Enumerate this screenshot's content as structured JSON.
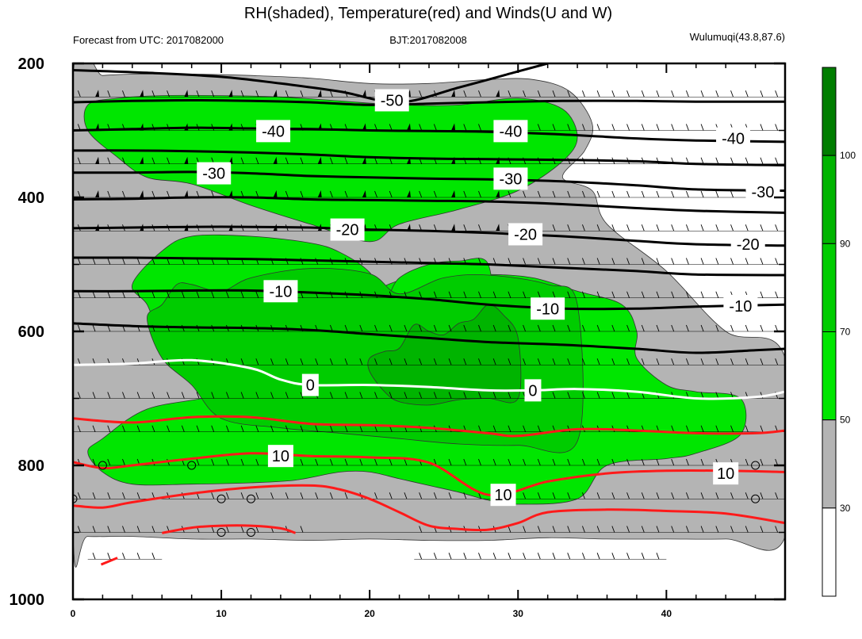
{
  "title": "RH(shaded), Temperature(red) and Winds(U and W)",
  "header_left": "Forecast from UTC: 2017082000",
  "header_center": "BJT:2017082008",
  "header_right": "Wulumuqi(43.8,87.6)",
  "colors": {
    "rh_30_50": "#b4b4b4",
    "rh_50_70": "#00e600",
    "rh_70_90": "#00cc00",
    "rh_90_100": "#00b400",
    "rh_100": "#007d00",
    "warm_isotherm": "#ff1a1a",
    "zero_isotherm": "#ffffff",
    "cold_isotherm": "#000000"
  },
  "chart_data": {
    "type": "heatmap",
    "title": "RH(shaded), Temperature(red) and Winds(U and W)",
    "x_ticks": [
      0,
      10,
      20,
      30,
      40
    ],
    "xlim": [
      0,
      48
    ],
    "y_ticks": [
      200,
      400,
      600,
      800,
      1000
    ],
    "ylim": [
      200,
      1000
    ],
    "y_reversed": true,
    "colorbar": {
      "levels": [
        30,
        50,
        70,
        90,
        100
      ],
      "colors": [
        "#ffffff",
        "#b4b4b4",
        "#00e600",
        "#00cc00",
        "#00b400",
        "#007d00"
      ]
    },
    "isotherm_labels": [
      {
        "value": "-50",
        "x": 21.5,
        "y": 255
      },
      {
        "value": "-40",
        "x": 13.5,
        "y": 301
      },
      {
        "value": "-40",
        "x": 29.5,
        "y": 301
      },
      {
        "value": "-40",
        "x": 44.5,
        "y": 312
      },
      {
        "value": "-30",
        "x": 9.5,
        "y": 364
      },
      {
        "value": "-30",
        "x": 29.5,
        "y": 372
      },
      {
        "value": "-30",
        "x": 46.5,
        "y": 392
      },
      {
        "value": "-20",
        "x": 18.5,
        "y": 448
      },
      {
        "value": "-20",
        "x": 30.5,
        "y": 455
      },
      {
        "value": "-20",
        "x": 45.5,
        "y": 470
      },
      {
        "value": "-10",
        "x": 14,
        "y": 540
      },
      {
        "value": "-10",
        "x": 32,
        "y": 566
      },
      {
        "value": "-10",
        "x": 45,
        "y": 562
      },
      {
        "value": "0",
        "x": 16,
        "y": 680
      },
      {
        "value": "0",
        "x": 31,
        "y": 688
      },
      {
        "value": "10",
        "x": 14,
        "y": 786
      },
      {
        "value": "10",
        "x": 29,
        "y": 844
      },
      {
        "value": "10",
        "x": 44,
        "y": 812
      }
    ],
    "isotherms": [
      {
        "t": -50,
        "x": [
          0,
          5,
          10,
          14,
          18,
          22,
          26,
          30,
          32
        ],
        "y": [
          210,
          214,
          220,
          230,
          242,
          258,
          236,
          212,
          200
        ]
      },
      {
        "t": -45,
        "x": [
          0,
          4,
          8,
          12,
          16,
          20,
          24,
          28,
          33,
          38,
          42,
          48
        ],
        "y": [
          258,
          256,
          255,
          256,
          258,
          262,
          260,
          258,
          256,
          256,
          257,
          257
        ]
      },
      {
        "t": -40,
        "x": [
          0,
          4,
          8,
          12,
          16,
          20,
          24,
          28,
          33,
          38,
          42,
          48
        ],
        "y": [
          300,
          298,
          296,
          297,
          298,
          300,
          301,
          302,
          306,
          312,
          315,
          317
        ]
      },
      {
        "t": -35,
        "x": [
          0,
          4,
          8,
          12,
          16,
          20,
          24,
          28,
          33,
          38,
          42,
          48
        ],
        "y": [
          330,
          330,
          331,
          333,
          336,
          340,
          342,
          343,
          344,
          346,
          350,
          352
        ]
      },
      {
        "t": -30,
        "x": [
          0,
          4,
          8,
          12,
          16,
          20,
          24,
          28,
          33,
          38,
          42,
          48
        ],
        "y": [
          363,
          363,
          362,
          364,
          368,
          370,
          372,
          373,
          376,
          382,
          388,
          390
        ]
      },
      {
        "t": -25,
        "x": [
          0,
          4,
          8,
          12,
          16,
          20,
          24,
          28,
          33,
          38,
          42,
          48
        ],
        "y": [
          403,
          402,
          400,
          400,
          403,
          404,
          405,
          406,
          410,
          416,
          420,
          423
        ]
      },
      {
        "t": -20,
        "x": [
          0,
          4,
          8,
          12,
          16,
          20,
          24,
          28,
          33,
          38,
          42,
          48
        ],
        "y": [
          446,
          445,
          444,
          444,
          445,
          448,
          450,
          453,
          458,
          465,
          470,
          472
        ]
      },
      {
        "t": -15,
        "x": [
          0,
          4,
          8,
          12,
          16,
          20,
          24,
          28,
          33,
          38,
          42,
          48
        ],
        "y": [
          490,
          490,
          491,
          492,
          494,
          496,
          498,
          500,
          505,
          510,
          515,
          516
        ]
      },
      {
        "t": -10,
        "x": [
          0,
          4,
          8,
          12,
          16,
          20,
          24,
          28,
          33,
          38,
          42,
          48
        ],
        "y": [
          540,
          540,
          539,
          539,
          542,
          546,
          552,
          560,
          566,
          566,
          563,
          560
        ]
      },
      {
        "t": -5,
        "x": [
          0,
          4,
          8,
          12,
          16,
          20,
          24,
          28,
          33,
          38,
          42,
          46,
          48
        ],
        "y": [
          588,
          592,
          594,
          595,
          598,
          604,
          610,
          616,
          620,
          626,
          632,
          628,
          626
        ]
      },
      {
        "t": 0,
        "x": [
          0,
          4,
          8,
          12,
          14,
          16,
          20,
          24,
          28,
          31,
          34,
          38,
          42,
          46,
          48
        ],
        "y": [
          650,
          648,
          643,
          655,
          672,
          680,
          680,
          683,
          688,
          688,
          686,
          690,
          700,
          698,
          690
        ]
      },
      {
        "t": 5,
        "x": [
          0,
          4,
          8,
          12,
          16,
          20,
          24,
          28,
          30,
          34,
          38,
          42,
          46,
          48
        ],
        "y": [
          730,
          736,
          728,
          728,
          738,
          740,
          744,
          752,
          756,
          746,
          748,
          752,
          752,
          748
        ]
      },
      {
        "t": 10,
        "x": [
          0,
          2,
          4,
          8,
          12,
          16,
          20,
          24,
          28,
          32,
          36,
          40,
          44,
          48
        ],
        "y": [
          795,
          804,
          800,
          790,
          782,
          786,
          788,
          796,
          844,
          824,
          812,
          808,
          808,
          810
        ]
      },
      {
        "t": 15,
        "x": [
          0,
          2,
          4,
          8,
          12,
          16,
          18,
          20,
          22,
          24,
          26,
          28,
          30,
          32,
          36,
          40,
          44,
          48
        ],
        "y": [
          860,
          863,
          855,
          842,
          833,
          830,
          836,
          850,
          870,
          890,
          895,
          896,
          886,
          870,
          866,
          868,
          872,
          886
        ]
      },
      {
        "t": 20,
        "x": [
          6,
          8,
          10,
          12,
          14,
          15
        ],
        "y": [
          901,
          893,
          890,
          890,
          894,
          901
        ]
      },
      {
        "t": 20,
        "x": [
          1.9,
          3
        ],
        "y": [
          948,
          938
        ]
      }
    ],
    "rh_regions": [
      {
        "level": 30,
        "x": [
          0,
          2,
          4,
          8,
          12,
          16,
          20,
          24,
          28,
          31,
          33.5,
          35,
          34.5,
          33,
          35,
          36,
          40,
          44,
          48,
          48,
          44,
          40,
          36,
          32,
          28,
          24,
          20,
          16,
          12,
          8,
          4,
          1,
          0
        ],
        "y": [
          222,
          218,
          216,
          216,
          218,
          222,
          230,
          230,
          224,
          224,
          242,
          290,
          330,
          370,
          390,
          440,
          510,
          600,
          640,
          906,
          910,
          910,
          910,
          908,
          912,
          912,
          910,
          912,
          910,
          910,
          906,
          906,
          900
        ]
      },
      {
        "level": 50,
        "x": [
          1,
          3,
          6,
          10,
          14,
          18,
          22,
          26,
          30,
          33,
          34,
          33,
          30,
          26,
          22,
          20,
          16,
          12,
          8,
          5,
          3,
          1
        ],
        "y": [
          262,
          252,
          248,
          248,
          250,
          256,
          262,
          262,
          252,
          268,
          310,
          346,
          390,
          418,
          440,
          466,
          440,
          412,
          380,
          370,
          340,
          300
        ]
      },
      {
        "level": 50,
        "x": [
          2,
          5,
          10,
          13,
          17,
          19,
          22,
          25,
          28,
          31,
          34,
          37,
          38,
          38,
          40,
          42,
          45,
          45,
          42,
          40,
          36,
          34,
          30,
          28,
          26,
          24,
          22,
          20,
          18,
          15,
          12,
          8,
          4,
          2,
          1
        ],
        "y": [
          760,
          716,
          692,
          640,
          590,
          556,
          524,
          518,
          515,
          520,
          540,
          560,
          600,
          640,
          680,
          690,
          700,
          754,
          782,
          790,
          800,
          850,
          858,
          852,
          840,
          830,
          820,
          810,
          810,
          822,
          826,
          828,
          828,
          810,
          780
        ]
      },
      {
        "level": 50,
        "x": [
          4,
          6,
          8,
          12,
          16,
          18,
          20,
          21,
          22,
          24,
          26,
          28,
          28,
          26,
          24,
          22,
          20,
          18,
          16,
          14,
          12,
          10,
          8,
          6,
          5
        ],
        "y": [
          530,
          480,
          458,
          458,
          468,
          482,
          512,
          552,
          520,
          500,
          495,
          500,
          600,
          660,
          680,
          690,
          700,
          720,
          720,
          690,
          660,
          650,
          640,
          610,
          560
        ]
      },
      {
        "level": 70,
        "x": [
          5,
          6,
          7,
          8,
          10,
          12,
          16,
          20,
          22,
          25,
          28,
          32,
          34,
          34,
          30,
          26,
          22,
          18,
          14,
          10,
          8,
          6
        ],
        "y": [
          580,
          560,
          530,
          530,
          540,
          520,
          506,
          514,
          544,
          520,
          516,
          530,
          560,
          764,
          770,
          768,
          760,
          752,
          744,
          730,
          680,
          640
        ]
      },
      {
        "level": 90,
        "x": [
          20,
          21,
          22,
          23,
          24,
          25,
          26,
          27,
          28,
          29,
          30,
          30,
          28,
          26,
          24,
          22,
          21,
          20
        ],
        "y": [
          640,
          630,
          625,
          590,
          600,
          605,
          588,
          582,
          560,
          575,
          610,
          700,
          700,
          702,
          710,
          705,
          690,
          660
        ]
      }
    ],
    "calm_markers": [
      {
        "x": 0,
        "y": 850
      },
      {
        "x": 2,
        "y": 800
      },
      {
        "x": 8,
        "y": 800
      },
      {
        "x": 10,
        "y": 850
      },
      {
        "x": 12,
        "y": 850
      },
      {
        "x": 10,
        "y": 900
      },
      {
        "x": 12,
        "y": 900
      },
      {
        "x": 46,
        "y": 800
      },
      {
        "x": 46,
        "y": 850
      }
    ]
  }
}
